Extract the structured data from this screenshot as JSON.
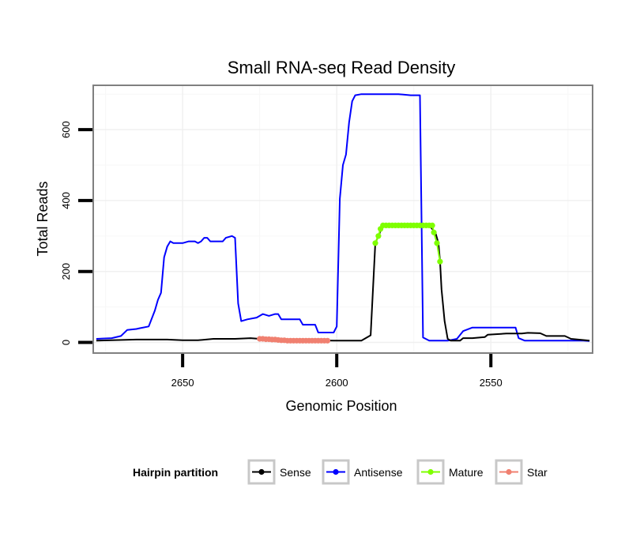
{
  "chart_data": {
    "type": "line",
    "title": "Small RNA-seq Read Density",
    "xlabel": "Genomic Position",
    "ylabel": "Total Reads",
    "xlim": [
      2679,
      2517
    ],
    "x_reversed": true,
    "ylim": [
      -30,
      725
    ],
    "x_ticks": [
      2650,
      2600,
      2550
    ],
    "y_ticks": [
      0,
      200,
      400,
      600
    ],
    "legend": {
      "title": "Hairpin partition",
      "position": "bottom",
      "entries": [
        "Sense",
        "Antisense",
        "Mature",
        "Star"
      ]
    },
    "series": [
      {
        "name": "Sense",
        "color": "#000000",
        "style": "line",
        "points": [
          [
            2678,
            5
          ],
          [
            2665,
            8
          ],
          [
            2655,
            8
          ],
          [
            2650,
            6
          ],
          [
            2645,
            6
          ],
          [
            2640,
            10
          ],
          [
            2633,
            10
          ],
          [
            2628,
            12
          ],
          [
            2622,
            8
          ],
          [
            2610,
            6
          ],
          [
            2601,
            5
          ],
          [
            2592,
            5
          ],
          [
            2589,
            20
          ],
          [
            2587.5,
            280
          ],
          [
            2586.5,
            300
          ],
          [
            2585,
            330
          ],
          [
            2582,
            330
          ],
          [
            2576,
            330
          ],
          [
            2570,
            330
          ],
          [
            2568,
            310
          ],
          [
            2567,
            280
          ],
          [
            2566.5,
            230
          ],
          [
            2566,
            150
          ],
          [
            2565,
            60
          ],
          [
            2564,
            10
          ],
          [
            2563,
            5
          ],
          [
            2560,
            5
          ],
          [
            2559,
            12
          ],
          [
            2556,
            12
          ],
          [
            2552,
            15
          ],
          [
            2551,
            22
          ],
          [
            2545,
            25
          ],
          [
            2540,
            25
          ],
          [
            2538,
            27
          ],
          [
            2534,
            26
          ],
          [
            2532,
            18
          ],
          [
            2526,
            18
          ],
          [
            2524,
            10
          ],
          [
            2518,
            5
          ]
        ]
      },
      {
        "name": "Antisense",
        "color": "#0000ff",
        "style": "line",
        "points": [
          [
            2678,
            10
          ],
          [
            2673,
            12
          ],
          [
            2670,
            18
          ],
          [
            2668,
            35
          ],
          [
            2665,
            38
          ],
          [
            2664,
            40
          ],
          [
            2661,
            45
          ],
          [
            2659,
            90
          ],
          [
            2658,
            120
          ],
          [
            2657,
            140
          ],
          [
            2656,
            240
          ],
          [
            2655,
            270
          ],
          [
            2654,
            285
          ],
          [
            2653,
            280
          ],
          [
            2650,
            280
          ],
          [
            2648,
            285
          ],
          [
            2646,
            285
          ],
          [
            2645,
            280
          ],
          [
            2644,
            285
          ],
          [
            2643,
            295
          ],
          [
            2642,
            295
          ],
          [
            2641,
            285
          ],
          [
            2639,
            285
          ],
          [
            2637,
            285
          ],
          [
            2636,
            295
          ],
          [
            2634,
            300
          ],
          [
            2633,
            295
          ],
          [
            2632,
            110
          ],
          [
            2631,
            60
          ],
          [
            2629,
            65
          ],
          [
            2626,
            70
          ],
          [
            2624,
            80
          ],
          [
            2622,
            75
          ],
          [
            2620,
            80
          ],
          [
            2619,
            80
          ],
          [
            2618,
            65
          ],
          [
            2616,
            65
          ],
          [
            2612,
            65
          ],
          [
            2611,
            50
          ],
          [
            2609,
            50
          ],
          [
            2607,
            50
          ],
          [
            2606,
            28
          ],
          [
            2603,
            28
          ],
          [
            2601,
            28
          ],
          [
            2600,
            45
          ],
          [
            2599,
            405
          ],
          [
            2598,
            500
          ],
          [
            2597,
            530
          ],
          [
            2596,
            620
          ],
          [
            2595,
            680
          ],
          [
            2594,
            697
          ],
          [
            2592,
            700
          ],
          [
            2585,
            700
          ],
          [
            2580,
            700
          ],
          [
            2576,
            697
          ],
          [
            2573,
            697
          ],
          [
            2572,
            14
          ],
          [
            2570,
            5
          ],
          [
            2564,
            5
          ],
          [
            2561,
            10
          ],
          [
            2559,
            32
          ],
          [
            2556,
            42
          ],
          [
            2552,
            42
          ],
          [
            2548,
            42
          ],
          [
            2544,
            42
          ],
          [
            2542,
            42
          ],
          [
            2541,
            12
          ],
          [
            2539,
            5
          ],
          [
            2530,
            5
          ],
          [
            2526,
            5
          ],
          [
            2520,
            5
          ],
          [
            2518,
            4
          ]
        ]
      },
      {
        "name": "Mature",
        "color": "#7fff00",
        "style": "points",
        "points": [
          [
            2587.5,
            280
          ],
          [
            2586.5,
            300
          ],
          [
            2585.8,
            320
          ],
          [
            2585,
            330
          ],
          [
            2584,
            330
          ],
          [
            2583,
            330
          ],
          [
            2582,
            330
          ],
          [
            2581,
            330
          ],
          [
            2580,
            330
          ],
          [
            2579,
            330
          ],
          [
            2578,
            330
          ],
          [
            2577,
            330
          ],
          [
            2576,
            330
          ],
          [
            2575,
            330
          ],
          [
            2574,
            330
          ],
          [
            2573,
            330
          ],
          [
            2572,
            330
          ],
          [
            2571,
            330
          ],
          [
            2570,
            330
          ],
          [
            2569,
            330
          ],
          [
            2568.5,
            310
          ],
          [
            2567.5,
            280
          ],
          [
            2566.5,
            228
          ]
        ]
      },
      {
        "name": "Star",
        "color": "#f08070",
        "style": "points",
        "points": [
          [
            2625,
            10
          ],
          [
            2624,
            10
          ],
          [
            2623,
            9
          ],
          [
            2622,
            9
          ],
          [
            2621,
            8
          ],
          [
            2620,
            8
          ],
          [
            2619,
            7
          ],
          [
            2618,
            6
          ],
          [
            2617,
            6
          ],
          [
            2616,
            5
          ],
          [
            2615,
            5
          ],
          [
            2614,
            5
          ],
          [
            2613,
            5
          ],
          [
            2612,
            5
          ],
          [
            2611,
            5
          ],
          [
            2610,
            5
          ],
          [
            2609,
            5
          ],
          [
            2608,
            5
          ],
          [
            2607,
            5
          ],
          [
            2606,
            5
          ],
          [
            2605,
            5
          ],
          [
            2604,
            5
          ],
          [
            2603,
            5
          ]
        ]
      }
    ]
  }
}
